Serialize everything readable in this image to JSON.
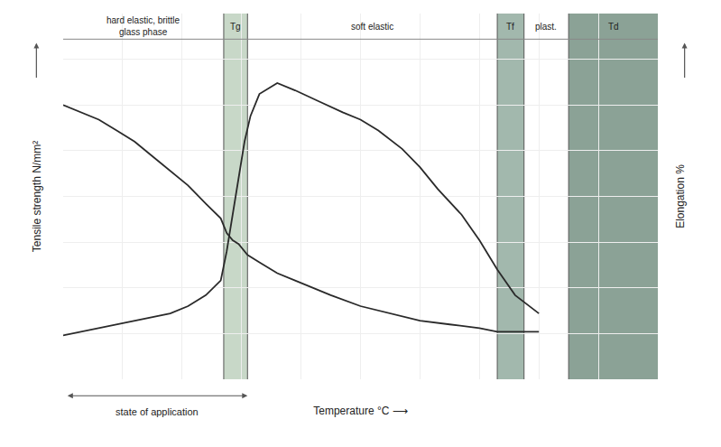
{
  "chart_data": {
    "type": "line",
    "xlabel": "Temperature °C ⟶",
    "ylabel": "Tensile strength N/mm²",
    "y2label": "Elongation %",
    "xlim": [
      0,
      10
    ],
    "ylim": [
      0,
      10
    ],
    "y2lim": [
      0,
      10
    ],
    "xticks": [
      0,
      1,
      2,
      3,
      4,
      5,
      6,
      7,
      8,
      9,
      10
    ],
    "yticks": [
      0,
      1.25,
      2.5,
      3.75,
      5,
      6.25,
      7.5,
      8.75,
      10
    ],
    "y2ticks": [
      0,
      1.25,
      2.5,
      3.75,
      5,
      6.25,
      7.5,
      8.75,
      10
    ],
    "grid": true,
    "tick_labels": false,
    "series": [
      {
        "color": "#2a2a2a",
        "x": [
          0.0,
          0.3,
          0.6,
          0.9,
          1.2,
          1.5,
          1.8,
          2.1,
          2.4,
          2.65,
          2.75,
          2.85,
          2.95,
          3.05,
          3.1,
          3.3,
          3.6,
          3.9,
          4.2,
          4.5,
          5.0,
          5.5,
          6.0,
          6.5,
          7.0,
          7.3,
          7.6,
          8.0
        ],
        "values": [
          7.5,
          7.3,
          7.1,
          6.8,
          6.5,
          6.1,
          5.7,
          5.3,
          4.8,
          4.4,
          4.0,
          3.8,
          3.7,
          3.5,
          3.4,
          3.2,
          2.9,
          2.7,
          2.5,
          2.3,
          2.0,
          1.8,
          1.6,
          1.5,
          1.4,
          1.3,
          1.3,
          1.3
        ]
      },
      {
        "color": "#2a2a2a",
        "axis": "y2",
        "x": [
          0.0,
          0.3,
          0.6,
          0.9,
          1.2,
          1.5,
          1.8,
          2.1,
          2.4,
          2.65,
          2.75,
          2.85,
          2.95,
          3.05,
          3.15,
          3.3,
          3.6,
          3.9,
          4.3,
          4.7,
          5.0,
          5.3,
          5.7,
          6.0,
          6.3,
          6.7,
          7.0,
          7.3,
          7.6,
          8.0
        ],
        "values": [
          1.2,
          1.3,
          1.4,
          1.5,
          1.6,
          1.7,
          1.8,
          2.0,
          2.3,
          2.7,
          3.5,
          4.5,
          5.5,
          6.5,
          7.2,
          7.8,
          8.1,
          7.9,
          7.6,
          7.3,
          7.1,
          6.8,
          6.3,
          5.8,
          5.2,
          4.5,
          3.8,
          3.0,
          2.3,
          1.8
        ]
      }
    ],
    "zones": [
      {
        "x": [
          2.7,
          3.1
        ],
        "color": "#c8d8c8"
      },
      {
        "x": [
          7.3,
          7.75
        ],
        "color": "#7a9a8a"
      },
      {
        "x": [
          8.5,
          10.0
        ],
        "color": "#5a7a6a"
      }
    ],
    "vlines": [
      2.7,
      3.1,
      7.3,
      7.75,
      8.5
    ],
    "hlines": [
      9.3
    ],
    "annotations": [
      {
        "text": "hard elastic, brittle\nglass phase",
        "x": [
          0,
          2.7
        ]
      },
      {
        "text": "Tg",
        "x": [
          2.7,
          3.1
        ]
      },
      {
        "text": "soft elastic",
        "x": [
          3.1,
          7.3
        ]
      },
      {
        "text": "Tf",
        "x": [
          7.3,
          7.75
        ]
      },
      {
        "text": "plast.",
        "x": [
          7.75,
          8.5
        ]
      },
      {
        "text": "Td",
        "x": [
          8.5,
          10.0
        ]
      }
    ],
    "range_arrow": {
      "text": "state of application",
      "x": [
        0.05,
        3.1
      ]
    }
  }
}
